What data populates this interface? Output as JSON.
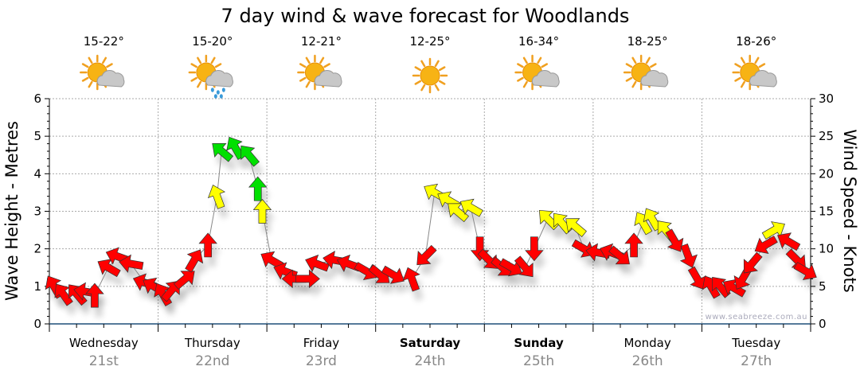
{
  "chart_data": {
    "type": "scatter",
    "title": "7 day wind & wave forecast for Woodlands",
    "ylabel": "Wave Height - Metres",
    "y2label": "Wind Speed - Knots",
    "ylim": [
      0,
      6
    ],
    "y2lim": [
      0,
      30
    ],
    "yticks": [
      "0",
      "1",
      "2",
      "3",
      "4",
      "5",
      "6"
    ],
    "y2ticks": [
      "0",
      "5",
      "10",
      "15",
      "20",
      "25",
      "30"
    ],
    "grid": true,
    "watermark": "www.seabreeze.com.au",
    "colors": {
      "light": "#ff0000",
      "moderate": "#ffff00",
      "strong": "#00e000",
      "axis": "#1f4e79",
      "line": "#888888"
    },
    "days": [
      {
        "name": "Wednesday",
        "date": "21st",
        "temp": "15-22°",
        "icon": "partly-cloudy-icon",
        "bold": false
      },
      {
        "name": "Thursday",
        "date": "22nd",
        "temp": "15-20°",
        "icon": "showers-icon",
        "bold": false
      },
      {
        "name": "Friday",
        "date": "23rd",
        "temp": "12-21°",
        "icon": "partly-cloudy-icon",
        "bold": false
      },
      {
        "name": "Saturday",
        "date": "24th",
        "temp": "12-25°",
        "icon": "sunny-icon",
        "bold": true
      },
      {
        "name": "Sunday",
        "date": "25th",
        "temp": "16-34°",
        "icon": "partly-cloudy-icon",
        "bold": true
      },
      {
        "name": "Monday",
        "date": "26th",
        "temp": "18-25°",
        "icon": "partly-cloudy-icon",
        "bold": false
      },
      {
        "name": "Tuesday",
        "date": "27th",
        "temp": "18-26°",
        "icon": "partly-cloudy-icon",
        "bold": false
      }
    ],
    "wind_series_fields": [
      "hour",
      "knots",
      "direction_deg"
    ],
    "wind": [
      [
        1,
        5,
        -30
      ],
      [
        3,
        4,
        -35
      ],
      [
        6,
        4,
        -40
      ],
      [
        8,
        4.3,
        -80
      ],
      [
        10,
        3.8,
        0
      ],
      [
        13,
        7.5,
        -60
      ],
      [
        15,
        9,
        -70
      ],
      [
        18,
        8,
        -80
      ],
      [
        21,
        5.5,
        -70
      ],
      [
        23,
        5,
        -60
      ],
      [
        25,
        4,
        -30
      ],
      [
        27,
        4.5,
        40
      ],
      [
        30,
        6,
        50
      ],
      [
        32,
        8.5,
        30
      ],
      [
        35,
        10.5,
        0
      ],
      [
        37,
        17,
        -20
      ],
      [
        38,
        23,
        -50
      ],
      [
        41,
        23.5,
        -30
      ],
      [
        44,
        22.5,
        -40
      ],
      [
        46,
        18,
        0
      ],
      [
        47,
        15,
        0
      ],
      [
        49,
        8.5,
        -60
      ],
      [
        52,
        7,
        -70
      ],
      [
        54,
        6,
        -90
      ],
      [
        57,
        6,
        90
      ],
      [
        59,
        8,
        -70
      ],
      [
        63,
        8.5,
        -80
      ],
      [
        66,
        8,
        -70
      ],
      [
        70,
        7,
        120
      ],
      [
        73,
        6.5,
        130
      ],
      [
        76,
        6.5,
        120
      ],
      [
        80,
        6,
        -20
      ],
      [
        83,
        9,
        -135
      ],
      [
        85,
        17.5,
        -60
      ],
      [
        88,
        16.5,
        -60
      ],
      [
        90,
        15,
        -50
      ],
      [
        93,
        15.5,
        -60
      ],
      [
        95,
        10,
        180
      ],
      [
        97,
        8.5,
        135
      ],
      [
        100,
        7.5,
        130
      ],
      [
        102,
        7.5,
        120
      ],
      [
        105,
        7.5,
        140
      ],
      [
        107,
        10,
        180
      ],
      [
        110,
        14,
        -45
      ],
      [
        113,
        13.5,
        -40
      ],
      [
        116,
        13,
        -50
      ],
      [
        118,
        10,
        120
      ],
      [
        121,
        9.5,
        -80
      ],
      [
        124,
        9.5,
        -70
      ],
      [
        126,
        9,
        130
      ],
      [
        129,
        10.5,
        0
      ],
      [
        131,
        13.5,
        -30
      ],
      [
        133,
        14,
        -30
      ],
      [
        136,
        12.5,
        -40
      ],
      [
        138,
        11,
        150
      ],
      [
        141,
        9,
        160
      ],
      [
        143,
        6,
        150
      ],
      [
        146,
        5,
        -30
      ],
      [
        148,
        5,
        -40
      ],
      [
        151,
        4.8,
        -60
      ],
      [
        153,
        6,
        -150
      ],
      [
        155,
        8,
        -140
      ],
      [
        158,
        10.5,
        -120
      ],
      [
        160,
        12.5,
        60
      ],
      [
        163,
        11,
        -60
      ],
      [
        165,
        8.5,
        135
      ],
      [
        167,
        7,
        120
      ]
    ]
  }
}
